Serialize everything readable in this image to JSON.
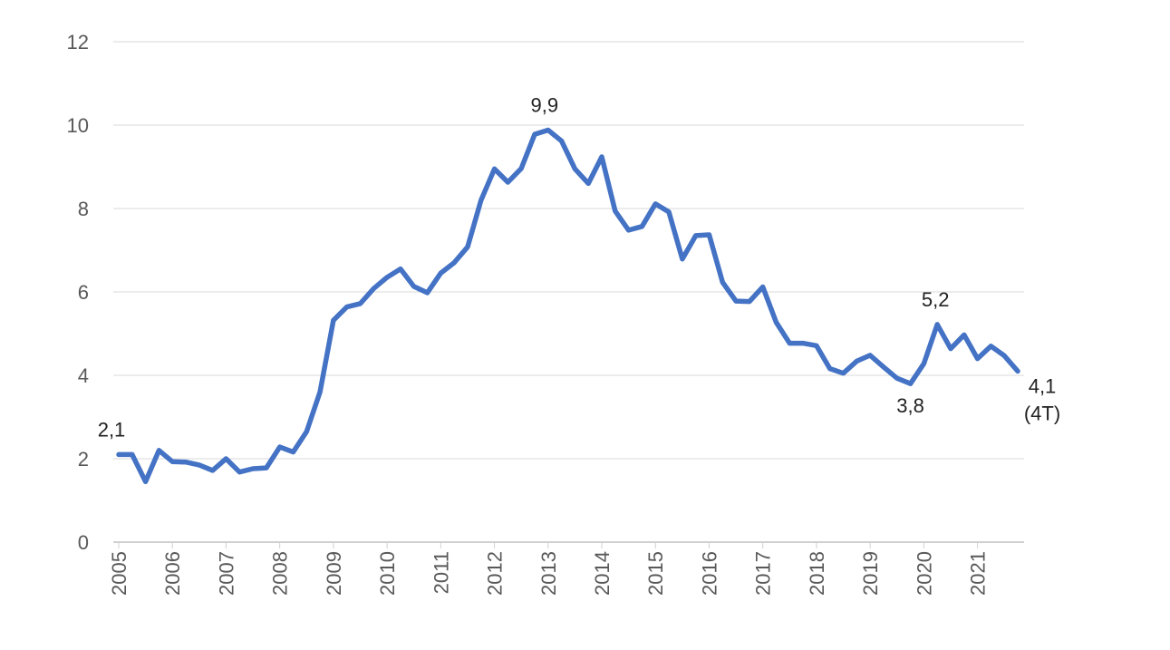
{
  "chart_data": {
    "type": "line",
    "title": "",
    "xlabel": "",
    "ylabel": "",
    "ylim": [
      0,
      12
    ],
    "yticks": [
      0,
      2,
      4,
      6,
      8,
      10,
      12
    ],
    "xticks": [
      "2005",
      "2006",
      "2007",
      "2008",
      "2009",
      "2010",
      "2011",
      "2012",
      "2013",
      "2014",
      "2015",
      "2016",
      "2017",
      "2018",
      "2019",
      "2020",
      "2021"
    ],
    "grid": true,
    "legend": "none",
    "line_color": "#4472C4",
    "series": [
      {
        "values": [
          2.1,
          2.1,
          1.45,
          2.2,
          1.93,
          1.92,
          1.85,
          1.72,
          2.0,
          1.68,
          1.76,
          1.78,
          2.28,
          2.16,
          2.65,
          3.6,
          5.32,
          5.64,
          5.72,
          6.08,
          6.35,
          6.55,
          6.13,
          5.98,
          6.45,
          6.7,
          7.08,
          8.2,
          8.95,
          8.63,
          8.96,
          9.78,
          9.88,
          9.62,
          8.95,
          8.6,
          9.24,
          7.94,
          7.48,
          7.57,
          8.11,
          7.92,
          6.79,
          7.35,
          7.37,
          6.23,
          5.78,
          5.77,
          6.12,
          5.27,
          4.77,
          4.77,
          4.71,
          4.16,
          4.05,
          4.34,
          4.48,
          4.2,
          3.93,
          3.8,
          4.28,
          5.22,
          4.64,
          4.97,
          4.4,
          4.7,
          4.47,
          4.1
        ]
      }
    ],
    "annotations": [
      {
        "text": "2,1",
        "index": 0
      },
      {
        "text": "9,9",
        "index": 32
      },
      {
        "text": "3,8",
        "index": 59
      },
      {
        "text": "5,2",
        "index": 61
      },
      {
        "text": "4,1",
        "index": 67
      },
      {
        "text": "(4T)",
        "index": 67
      }
    ]
  }
}
